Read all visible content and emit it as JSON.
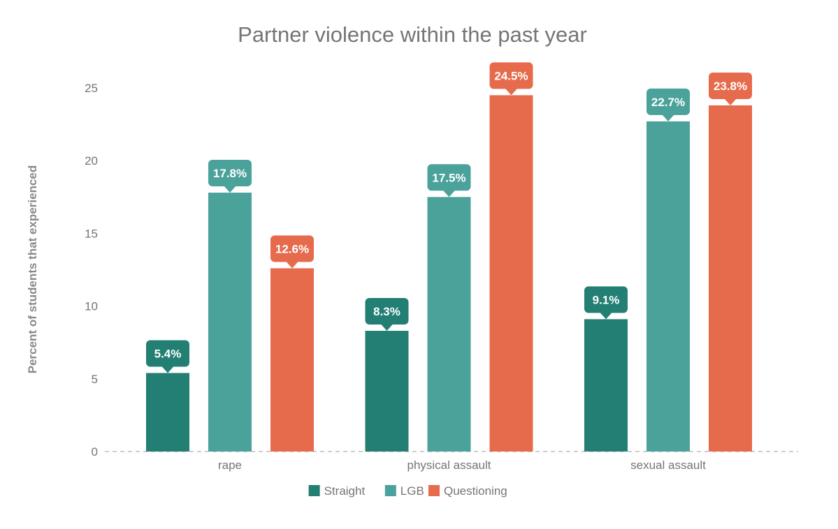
{
  "chart_data": {
    "type": "bar",
    "title": "Partner violence within the past year",
    "xlabel": "",
    "ylabel": "Percent of students that experienced",
    "categories": [
      "rape",
      "physical assault",
      "sexual assault"
    ],
    "series": [
      {
        "name": "Straight",
        "color": "#237f74",
        "values": [
          5.4,
          8.3,
          9.1
        ],
        "labels": [
          "5.4%",
          "8.3%",
          "9.1%"
        ]
      },
      {
        "name": "LGB",
        "color": "#4aa29b",
        "values": [
          17.8,
          17.5,
          22.7
        ],
        "labels": [
          "17.8%",
          "17.5%",
          "22.7%"
        ]
      },
      {
        "name": "Questioning",
        "color": "#e66b4d",
        "values": [
          12.6,
          24.5,
          23.8
        ],
        "labels": [
          "12.6%",
          "24.5%",
          "23.8%"
        ]
      }
    ],
    "yticks": [
      0,
      5,
      10,
      15,
      20,
      25
    ],
    "ytick_labels": [
      "0",
      "5",
      "10",
      "15",
      "20",
      "25"
    ],
    "ylim": [
      0,
      25
    ],
    "grid": false,
    "legend": "bottom"
  }
}
